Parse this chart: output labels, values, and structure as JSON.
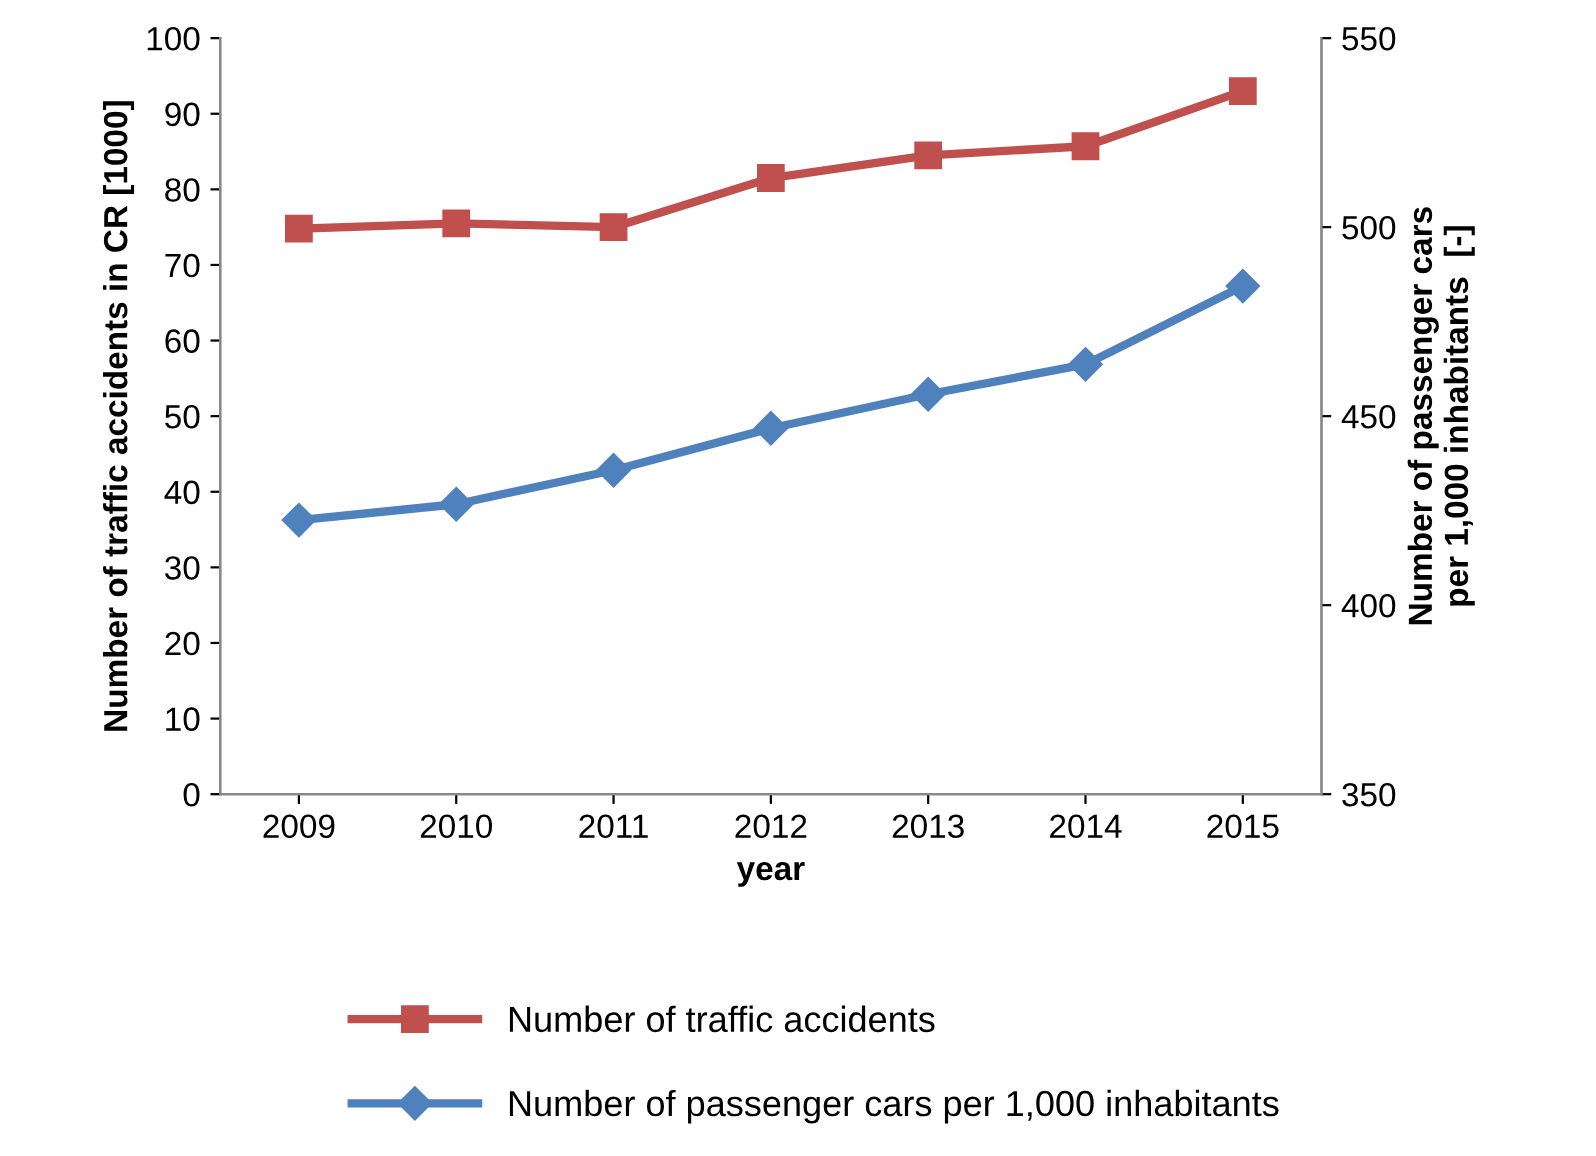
{
  "chart_data": {
    "type": "line",
    "xlabel": "year",
    "ylabel": "Number of traffic accidents in CR [1000]",
    "y2label": "Number of passenger cars\nper 1,000 inhabitants  [-]",
    "categories": [
      "2009",
      "2010",
      "2011",
      "2012",
      "2013",
      "2014",
      "2015"
    ],
    "series": [
      {
        "name": "Number of traffic accidents",
        "color": "#c0504d",
        "marker": "square",
        "values": [
          74.8,
          75.5,
          75.0,
          81.5,
          84.5,
          85.7,
          93.0
        ]
      },
      {
        "name": "Number of passenger cars per 1,000 inhabitants",
        "color": "#4f81bd",
        "marker": "diamond",
        "axis": "y2",
        "values": [
          422.5,
          426.7,
          435.7,
          446.8,
          455.8,
          463.7,
          484.4
        ]
      }
    ],
    "ylim": [
      0,
      100
    ],
    "yticks": [
      0,
      10,
      20,
      30,
      40,
      50,
      60,
      70,
      80,
      90,
      100
    ],
    "y2lim": [
      350,
      550
    ],
    "y2ticks": [
      350,
      400,
      450,
      500,
      550
    ],
    "grid": false,
    "legend": "bottom",
    "line_style": "solid"
  }
}
